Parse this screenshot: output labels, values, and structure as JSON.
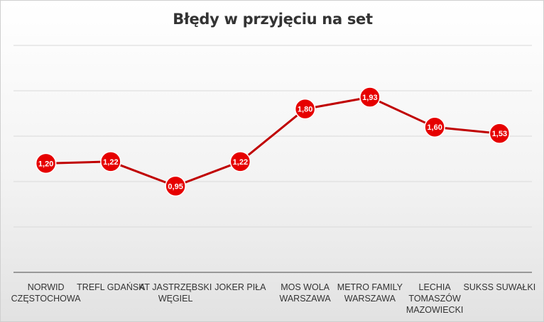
{
  "chart_data": {
    "type": "line",
    "title": "Błędy w przyjęciu na set",
    "xlabel": "",
    "ylabel": "",
    "ylim": [
      0,
      2.5
    ],
    "grid": true,
    "legend": "none",
    "categories": [
      [
        "NORWID",
        "CZĘSTOCHOWA"
      ],
      [
        "TREFL GDAŃSK"
      ],
      [
        "AT JASTRZĘBSKI",
        "WĘGIEL"
      ],
      [
        "JOKER PIŁA"
      ],
      [
        "MOS WOLA",
        "WARSZAWA"
      ],
      [
        "METRO FAMILY",
        "WARSZAWA"
      ],
      [
        "LECHIA",
        "TOMASZÓW",
        "MAZOWIECKI"
      ],
      [
        "SUKSS SUWAŁKI"
      ]
    ],
    "values": [
      1.2,
      1.22,
      0.95,
      1.22,
      1.8,
      1.93,
      1.6,
      1.53
    ],
    "value_labels": [
      "1,20",
      "1,22",
      "0,95",
      "1,22",
      "1,80",
      "1,93",
      "1,60",
      "1,53"
    ],
    "colors": {
      "line": "#c00000",
      "marker": "#e60000",
      "marker_border": "#ffffff",
      "grid": "#d9d9d9",
      "axis": "#7f7f7f"
    }
  }
}
